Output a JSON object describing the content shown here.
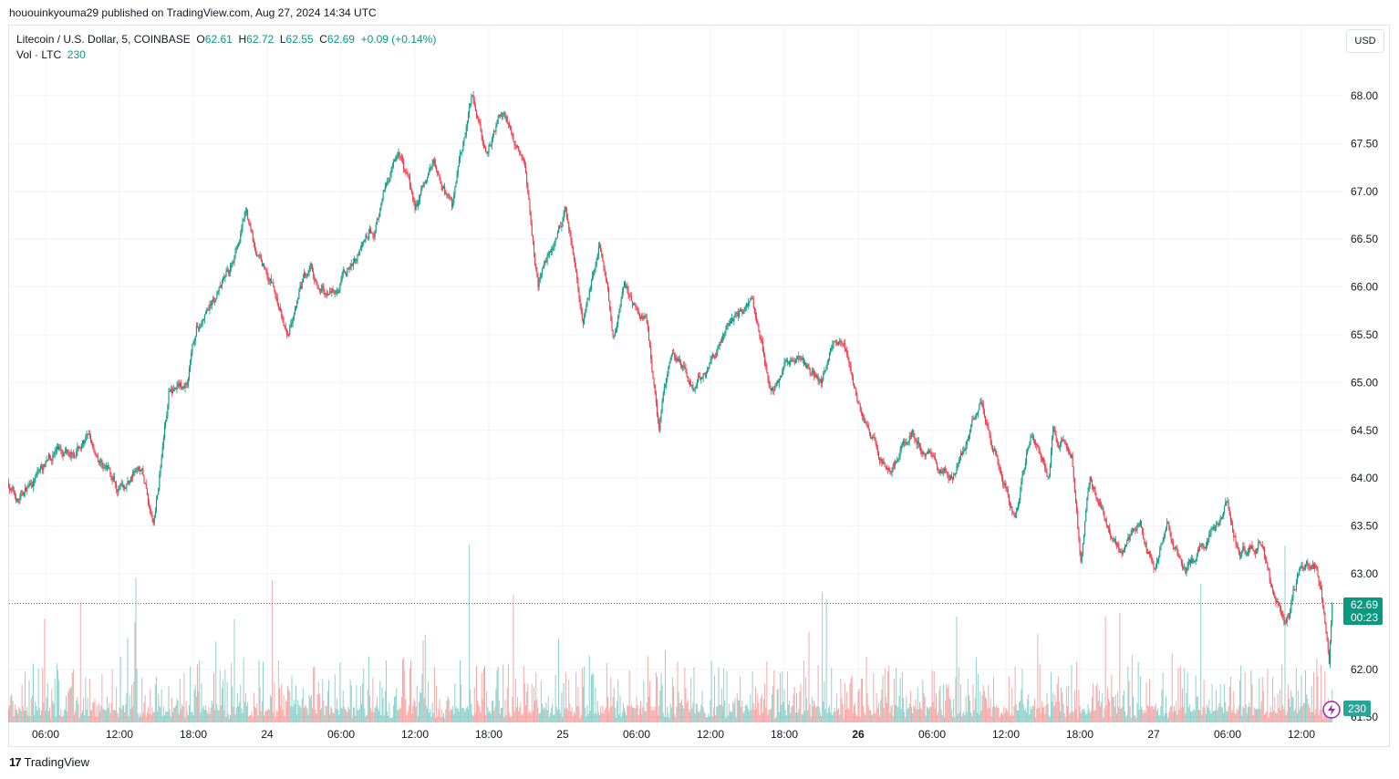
{
  "published": "hououinkyouma29 published on TradingView.com, Aug 27, 2024 14:34 UTC",
  "legend": {
    "symbol": "Litecoin / U.S. Dollar, 5, COINBASE",
    "open_label": "O",
    "open": "62.61",
    "high_label": "H",
    "high": "62.72",
    "low_label": "L",
    "low": "62.55",
    "close_label": "C",
    "close": "62.69",
    "change": "+0.09 (+0.14%)",
    "vol_label": "Vol · LTC",
    "vol": "230"
  },
  "currency_button": "USD",
  "footer_brand": "TradingView",
  "colors": {
    "up": "#089981",
    "down": "#f23645",
    "vol_up": "#26a69a",
    "vol_down": "#ef5350",
    "grid": "#f0f3fa",
    "last_price": "#089981",
    "lightning": "#9c27b0"
  },
  "chart_data": {
    "type": "candlestick",
    "interval": "5m",
    "ylim": [
      61.5,
      68.0
    ],
    "y_ticks": [
      "68.00",
      "67.50",
      "67.00",
      "66.50",
      "66.00",
      "65.50",
      "65.00",
      "64.50",
      "64.00",
      "63.50",
      "63.00",
      "62.00",
      "61.50"
    ],
    "x_ticks": [
      {
        "time": "2024-08-23 06:00",
        "label": "06:00"
      },
      {
        "time": "2024-08-23 12:00",
        "label": "12:00"
      },
      {
        "time": "2024-08-23 18:00",
        "label": "18:00"
      },
      {
        "time": "2024-08-24 00:00",
        "label": "24"
      },
      {
        "time": "2024-08-24 06:00",
        "label": "06:00"
      },
      {
        "time": "2024-08-24 12:00",
        "label": "12:00"
      },
      {
        "time": "2024-08-24 18:00",
        "label": "18:00"
      },
      {
        "time": "2024-08-25 00:00",
        "label": "25"
      },
      {
        "time": "2024-08-25 06:00",
        "label": "06:00"
      },
      {
        "time": "2024-08-25 12:00",
        "label": "12:00"
      },
      {
        "time": "2024-08-25 18:00",
        "label": "18:00"
      },
      {
        "time": "2024-08-26 00:00",
        "label": "26",
        "bold": true
      },
      {
        "time": "2024-08-26 06:00",
        "label": "06:00"
      },
      {
        "time": "2024-08-26 12:00",
        "label": "12:00"
      },
      {
        "time": "2024-08-26 18:00",
        "label": "18:00"
      },
      {
        "time": "2024-08-27 00:00",
        "label": "27"
      },
      {
        "time": "2024-08-27 06:00",
        "label": "06:00"
      },
      {
        "time": "2024-08-27 12:00",
        "label": "12:00"
      }
    ],
    "price_path": [
      [
        "2024-08-23 03:00",
        63.95
      ],
      [
        "2024-08-23 03:45",
        63.75
      ],
      [
        "2024-08-23 06:45",
        64.3
      ],
      [
        "2024-08-23 09:20",
        64.4
      ],
      [
        "2024-08-23 11:55",
        63.95
      ],
      [
        "2024-08-23 13:50",
        64.05
      ],
      [
        "2024-08-23 14:45",
        63.5
      ],
      [
        "2024-08-23 16:00",
        64.9
      ],
      [
        "2024-08-23 17:30",
        65.0
      ],
      [
        "2024-08-23 18:15",
        65.55
      ],
      [
        "2024-08-23 20:50",
        66.1
      ],
      [
        "2024-08-23 22:20",
        66.8
      ],
      [
        "2024-08-23 23:00",
        66.4
      ],
      [
        "2024-08-24 00:30",
        66.05
      ],
      [
        "2024-08-24 01:35",
        65.5
      ],
      [
        "2024-08-24 03:30",
        66.2
      ],
      [
        "2024-08-24 05:00",
        65.9
      ],
      [
        "2024-08-24 08:40",
        66.6
      ],
      [
        "2024-08-24 10:40",
        67.5
      ],
      [
        "2024-08-24 12:00",
        66.8
      ],
      [
        "2024-08-24 13:30",
        67.3
      ],
      [
        "2024-08-24 15:00",
        66.8
      ],
      [
        "2024-08-24 16:40",
        68.0
      ],
      [
        "2024-08-24 17:55",
        67.4
      ],
      [
        "2024-08-24 19:00",
        67.85
      ],
      [
        "2024-08-24 20:55",
        67.25
      ],
      [
        "2024-08-24 22:00",
        66.05
      ],
      [
        "2024-08-25 00:15",
        66.85
      ],
      [
        "2024-08-25 01:40",
        65.6
      ],
      [
        "2024-08-25 03:00",
        66.4
      ],
      [
        "2024-08-25 04:05",
        65.55
      ],
      [
        "2024-08-25 05:00",
        65.95
      ],
      [
        "2024-08-25 06:55",
        65.55
      ],
      [
        "2024-08-25 07:50",
        64.5
      ],
      [
        "2024-08-25 08:45",
        65.3
      ],
      [
        "2024-08-25 10:35",
        64.95
      ],
      [
        "2024-08-25 12:50",
        65.4
      ],
      [
        "2024-08-25 15:25",
        65.9
      ],
      [
        "2024-08-25 16:55",
        64.9
      ],
      [
        "2024-08-25 18:45",
        65.25
      ],
      [
        "2024-08-25 21:00",
        65.0
      ],
      [
        "2024-08-25 22:05",
        65.5
      ],
      [
        "2024-08-25 23:10",
        65.3
      ],
      [
        "2024-08-26 00:20",
        64.65
      ],
      [
        "2024-08-26 02:20",
        64.05
      ],
      [
        "2024-08-26 04:25",
        64.45
      ],
      [
        "2024-08-26 06:35",
        64.1
      ],
      [
        "2024-08-26 07:40",
        64.05
      ],
      [
        "2024-08-26 10:05",
        64.8
      ],
      [
        "2024-08-26 11:00",
        64.35
      ],
      [
        "2024-08-26 12:45",
        63.6
      ],
      [
        "2024-08-26 14:00",
        64.5
      ],
      [
        "2024-08-26 15:30",
        64.05
      ],
      [
        "2024-08-26 15:50",
        64.55
      ],
      [
        "2024-08-26 17:20",
        64.3
      ],
      [
        "2024-08-26 18:05",
        63.1
      ],
      [
        "2024-08-26 18:50",
        64.05
      ],
      [
        "2024-08-26 20:20",
        63.45
      ],
      [
        "2024-08-26 21:25",
        63.2
      ],
      [
        "2024-08-26 22:55",
        63.55
      ],
      [
        "2024-08-27 00:00",
        63.1
      ],
      [
        "2024-08-27 01:05",
        63.4
      ],
      [
        "2024-08-27 02:35",
        63.0
      ],
      [
        "2024-08-27 04:05",
        63.35
      ],
      [
        "2024-08-27 05:55",
        63.75
      ],
      [
        "2024-08-27 07:00",
        63.2
      ],
      [
        "2024-08-27 08:55",
        63.35
      ],
      [
        "2024-08-27 09:35",
        62.85
      ],
      [
        "2024-08-27 10:45",
        62.4
      ],
      [
        "2024-08-27 11:50",
        63.0
      ],
      [
        "2024-08-27 13:15",
        63.05
      ],
      [
        "2024-08-27 14:00",
        62.4
      ],
      [
        "2024-08-27 14:15",
        62.05
      ],
      [
        "2024-08-27 14:30",
        62.69
      ]
    ],
    "last_price": "62.69",
    "countdown": "00:23",
    "last_volume": "230"
  }
}
